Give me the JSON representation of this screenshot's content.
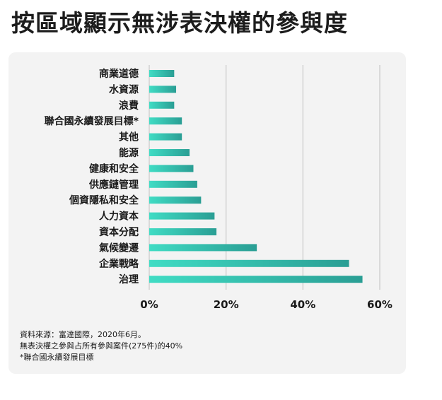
{
  "title": "按區域顯示無涉表決權的參與度",
  "chart_data": {
    "type": "bar",
    "orientation": "horizontal",
    "categories": [
      "商業道德",
      "水資源",
      "浪費",
      "聯合國永續發展目標*",
      "其他",
      "能源",
      "健康和安全",
      "供應鏈管理",
      "個資隱私和安全",
      "人力資本",
      "資本分配",
      "氣候變遷",
      "企業戰略",
      "治理"
    ],
    "values": [
      6.5,
      7,
      6.5,
      8.5,
      8.5,
      10.5,
      11.5,
      12.5,
      13.5,
      17,
      17.5,
      28,
      52,
      55.5
    ],
    "xlim": [
      0,
      60
    ],
    "xticks": [
      0,
      20,
      40,
      60
    ],
    "xtick_labels": [
      "0%",
      "20%",
      "40%",
      "60%"
    ],
    "grid": "vertical",
    "bar_color_start": "#40dcc4",
    "bar_color_end": "#2a9e94"
  },
  "footnotes": [
    "資料來源：富達國際，2020年6月。",
    "無表決權之參與占所有參與案件(275件)的40%",
    "*聯合國永續發展目標"
  ]
}
